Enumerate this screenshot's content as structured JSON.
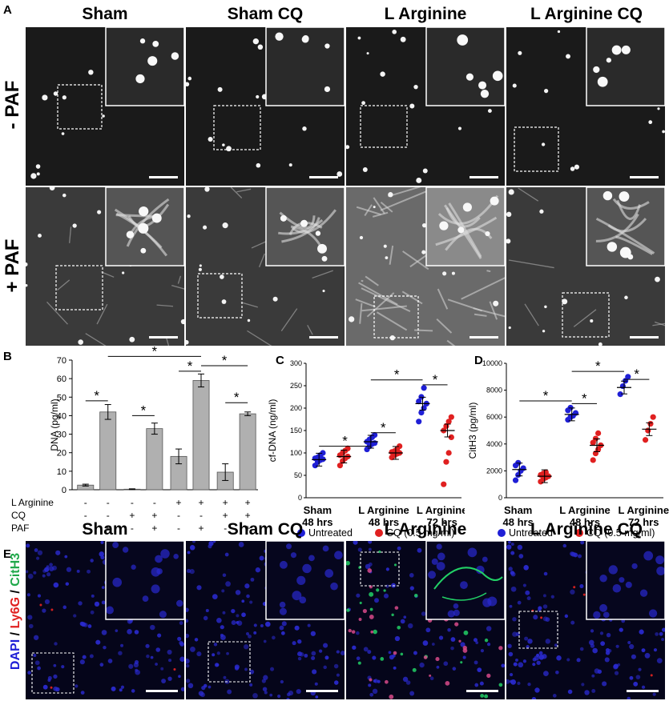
{
  "panel_letters": {
    "a": "A",
    "b": "B",
    "c": "C",
    "d": "D",
    "e": "E"
  },
  "groups": [
    "Sham",
    "Sham CQ",
    "L Arginine",
    "L Arginine CQ"
  ],
  "row_labels": {
    "minus_paf": "- PAF",
    "plus_paf": "+ PAF"
  },
  "panel_e_stain": {
    "dapi": "DAPI",
    "sep1": " / ",
    "ly6g": "Ly6G",
    "sep2": " / ",
    "cith3": "CitH3"
  },
  "colors": {
    "blue": "#1f1fd6",
    "red": "#e02020",
    "green": "#1fa84a",
    "bar": "#b0b0b0"
  },
  "chart_data": [
    {
      "type": "bar",
      "panel": "B",
      "ylabel": "DNA (pg/ml)",
      "ylim": [
        0,
        70
      ],
      "yticks": [
        0,
        10,
        20,
        30,
        40,
        50,
        60,
        70
      ],
      "values": [
        2.5,
        42,
        0.3,
        33,
        18,
        59,
        9.5,
        41
      ],
      "errors": [
        0.5,
        4,
        0.2,
        3,
        4,
        3.5,
        4.5,
        1
      ],
      "condition_rows": [
        {
          "label": "L Arginine",
          "signs": [
            "-",
            "-",
            "-",
            "-",
            "+",
            "+",
            "+",
            "+"
          ]
        },
        {
          "label": "CQ",
          "signs": [
            "-",
            "-",
            "+",
            "+",
            "-",
            "-",
            "+",
            "+"
          ]
        },
        {
          "label": "PAF",
          "signs": [
            "-",
            "+",
            "-",
            "+",
            "-",
            "+",
            "-",
            "+"
          ]
        }
      ],
      "significance_mark": "*"
    },
    {
      "type": "scatter",
      "panel": "C",
      "ylabel": "cf-DNA (ng/ml)",
      "ylim": [
        0,
        300
      ],
      "yticks": [
        0,
        50,
        100,
        150,
        200,
        250,
        300
      ],
      "group_labels": [
        [
          "Sham",
          "48 hrs"
        ],
        [
          "L Arginine",
          "48 hrs"
        ],
        [
          "L Arginine",
          "72 hrs"
        ]
      ],
      "legend": {
        "untreated": "Untreated",
        "cq": "CQ (0.5 mg/ml)"
      },
      "series": [
        {
          "name": "Untreated",
          "color": "#1f1fd6",
          "groups": [
            [
              72,
              80,
              84,
              86,
              88,
              90,
              95,
              100
            ],
            [
              108,
              115,
              120,
              122,
              125,
              130,
              135,
              140
            ],
            [
              170,
              190,
              200,
              210,
              215,
              225,
              245
            ]
          ]
        },
        {
          "name": "CQ (0.5 mg/ml)",
          "color": "#e02020",
          "groups": [
            [
              72,
              82,
              88,
              92,
              95,
              100,
              105,
              110
            ],
            [
              90,
              95,
              98,
              100,
              102,
              104,
              108,
              115
            ],
            [
              30,
              80,
              100,
              135,
              150,
              160,
              170,
              180
            ]
          ]
        }
      ],
      "means": [
        [
          85,
          92
        ],
        [
          125,
          100
        ],
        [
          210,
          150
        ]
      ],
      "significance_mark": "*"
    },
    {
      "type": "scatter",
      "panel": "D",
      "ylabel": "CitH3 (pg/ml)",
      "ylim": [
        0,
        10000
      ],
      "yticks": [
        0,
        2000,
        4000,
        6000,
        8000,
        10000
      ],
      "group_labels": [
        [
          "Sham",
          "48 hrs"
        ],
        [
          "L Arginine",
          "48 hrs"
        ],
        [
          "L Arginine",
          "72 hrs"
        ]
      ],
      "legend": {
        "untreated": "Untreated",
        "cq": "CQ (0.5 mg/ml)"
      },
      "series": [
        {
          "name": "Untreated",
          "color": "#1f1fd6",
          "groups": [
            [
              1300,
              1700,
              2000,
              2200,
              2400,
              2600
            ],
            [
              5800,
              6000,
              6100,
              6300,
              6500,
              6700
            ],
            [
              7700,
              8300,
              8700,
              9000
            ]
          ]
        },
        {
          "name": "CQ (0.5 mg/ml)",
          "color": "#e02020",
          "groups": [
            [
              1200,
              1400,
              1500,
              1600,
              1700,
              1800,
              1900
            ],
            [
              2800,
              3300,
              3600,
              3900,
              4100,
              4400,
              4800
            ],
            [
              4300,
              5000,
              5500,
              6000
            ]
          ]
        }
      ],
      "means": [
        [
          2100,
          1600
        ],
        [
          6200,
          3900
        ],
        [
          8200,
          5100
        ]
      ],
      "significance_mark": "*"
    }
  ]
}
